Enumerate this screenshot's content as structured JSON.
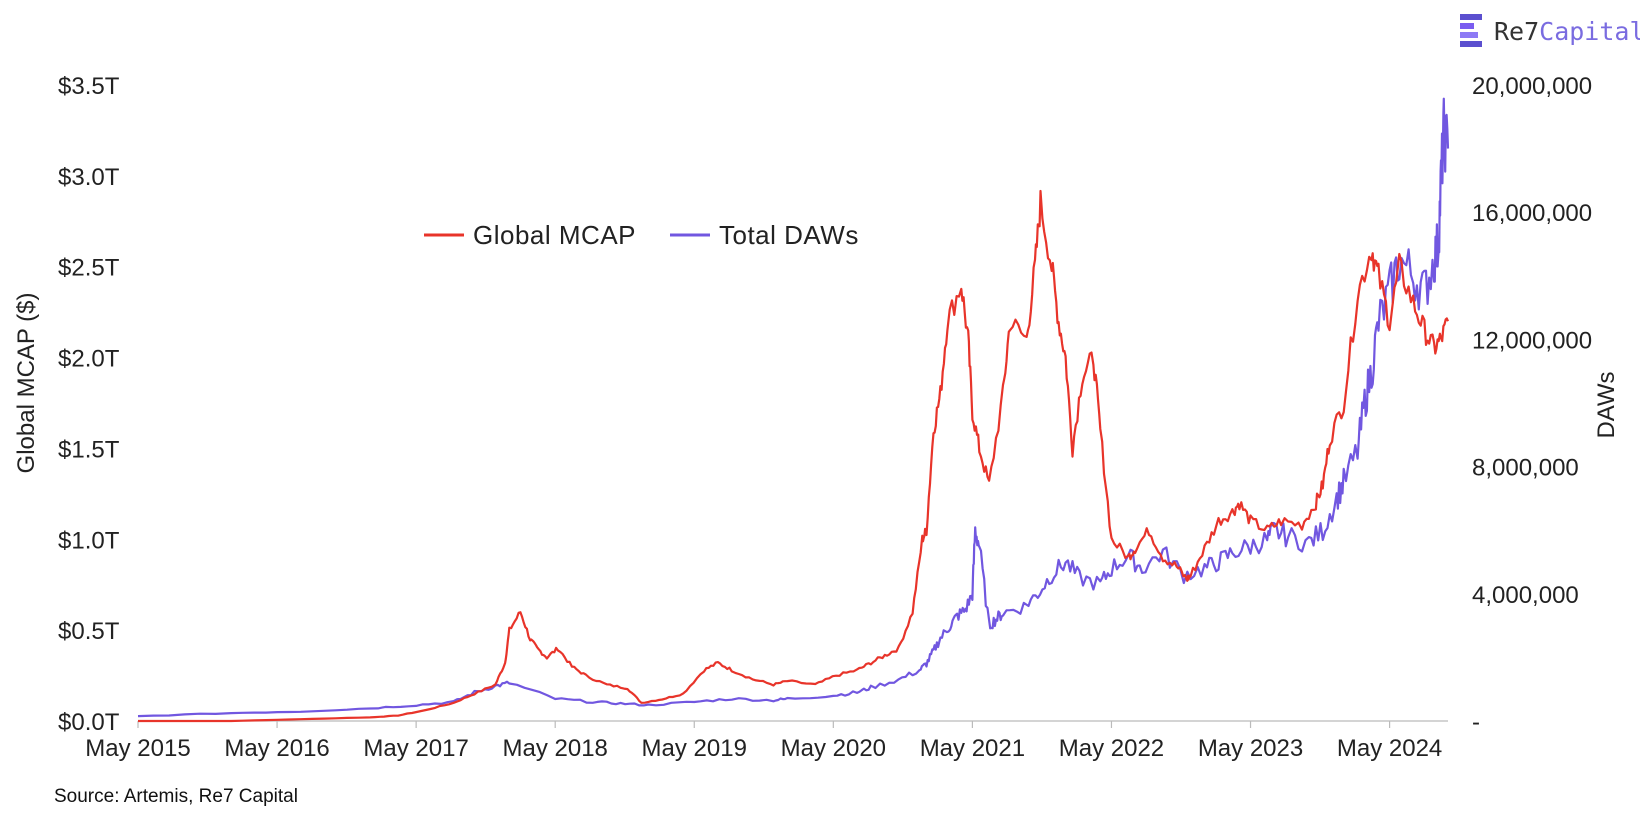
{
  "colors": {
    "mcap": "#e8342a",
    "daws": "#7157e0",
    "axis": "#bbbbbb",
    "text": "#222222"
  },
  "brand": {
    "name_part1": "Re7",
    "name_part2": "Capital",
    "icon": "stacked-bars-logo-icon"
  },
  "source": "Source: Artemis, Re7 Capital",
  "chart_data": {
    "type": "line",
    "title": "",
    "xlabel": "",
    "y_left_label": "Global MCAP ($)",
    "y_right_label": "DAWs",
    "x_range": [
      2015.33,
      2024.75
    ],
    "x_ticks": [
      {
        "v": 2015.33,
        "label": "May 2015"
      },
      {
        "v": 2016.33,
        "label": "May 2016"
      },
      {
        "v": 2017.33,
        "label": "May 2017"
      },
      {
        "v": 2018.33,
        "label": "May 2018"
      },
      {
        "v": 2019.33,
        "label": "May 2019"
      },
      {
        "v": 2020.33,
        "label": "May 2020"
      },
      {
        "v": 2021.33,
        "label": "May 2021"
      },
      {
        "v": 2022.33,
        "label": "May 2022"
      },
      {
        "v": 2023.33,
        "label": "May 2023"
      },
      {
        "v": 2024.33,
        "label": "May 2024"
      }
    ],
    "y_left_range": [
      0,
      3.5
    ],
    "y_left_ticks": [
      {
        "v": 0,
        "label": "$0.0T"
      },
      {
        "v": 0.5,
        "label": "$0.5T"
      },
      {
        "v": 1.0,
        "label": "$1.0T"
      },
      {
        "v": 1.5,
        "label": "$1.5T"
      },
      {
        "v": 2.0,
        "label": "$2.0T"
      },
      {
        "v": 2.5,
        "label": "$2.5T"
      },
      {
        "v": 3.0,
        "label": "$3.0T"
      },
      {
        "v": 3.5,
        "label": "$3.5T"
      }
    ],
    "y_right_range": [
      0,
      20000000
    ],
    "y_right_ticks": [
      {
        "v": 0,
        "label": "-"
      },
      {
        "v": 4000000,
        "label": "4,000,000"
      },
      {
        "v": 8000000,
        "label": "8,000,000"
      },
      {
        "v": 12000000,
        "label": "12,000,000"
      },
      {
        "v": 16000000,
        "label": "16,000,000"
      },
      {
        "v": 20000000,
        "label": "20,000,000"
      }
    ],
    "legend": {
      "position": "top-center"
    },
    "series": [
      {
        "name": "Global MCAP",
        "axis": "left",
        "unit": "trillion USD",
        "x": [
          2015.33,
          2016.0,
          2016.5,
          2017.0,
          2017.2,
          2017.4,
          2017.6,
          2017.75,
          2017.9,
          2017.97,
          2018.0,
          2018.08,
          2018.15,
          2018.2,
          2018.27,
          2018.35,
          2018.45,
          2018.55,
          2018.7,
          2018.85,
          2018.95,
          2019.1,
          2019.25,
          2019.4,
          2019.5,
          2019.6,
          2019.75,
          2019.9,
          2020.0,
          2020.2,
          2020.35,
          2020.5,
          2020.6,
          2020.7,
          2020.8,
          2020.9,
          2020.97,
          2021.0,
          2021.05,
          2021.1,
          2021.15,
          2021.25,
          2021.3,
          2021.33,
          2021.38,
          2021.45,
          2021.55,
          2021.6,
          2021.72,
          2021.78,
          2021.82,
          2021.9,
          2021.95,
          2022.0,
          2022.05,
          2022.12,
          2022.2,
          2022.25,
          2022.33,
          2022.45,
          2022.5,
          2022.6,
          2022.7,
          2022.8,
          2022.87,
          2022.9,
          2023.0,
          2023.1,
          2023.2,
          2023.25,
          2023.33,
          2023.45,
          2023.55,
          2023.7,
          2023.8,
          2023.85,
          2023.9,
          2024.0,
          2024.1,
          2024.2,
          2024.25,
          2024.33,
          2024.4,
          2024.5,
          2024.58,
          2024.65,
          2024.7,
          2024.75
        ],
        "values": [
          0.0,
          0.0,
          0.01,
          0.02,
          0.03,
          0.06,
          0.1,
          0.15,
          0.2,
          0.32,
          0.5,
          0.6,
          0.45,
          0.4,
          0.35,
          0.4,
          0.3,
          0.25,
          0.2,
          0.18,
          0.1,
          0.12,
          0.15,
          0.28,
          0.32,
          0.28,
          0.23,
          0.2,
          0.22,
          0.2,
          0.25,
          0.28,
          0.32,
          0.36,
          0.4,
          0.6,
          1.0,
          1.05,
          1.6,
          1.8,
          2.2,
          2.4,
          2.1,
          1.7,
          1.5,
          1.3,
          1.8,
          2.2,
          2.1,
          2.5,
          2.85,
          2.5,
          2.2,
          2.0,
          1.5,
          1.9,
          2.0,
          1.6,
          1.0,
          0.9,
          0.95,
          1.05,
          0.9,
          0.85,
          0.78,
          0.8,
          0.95,
          1.1,
          1.15,
          1.2,
          1.1,
          1.05,
          1.1,
          1.08,
          1.2,
          1.3,
          1.55,
          1.75,
          2.35,
          2.6,
          2.45,
          2.2,
          2.5,
          2.3,
          2.15,
          2.05,
          2.1,
          2.2
        ]
      },
      {
        "name": "Total DAWs",
        "axis": "right",
        "unit": "addresses",
        "x": [
          2015.33,
          2016.0,
          2016.5,
          2017.0,
          2017.33,
          2017.6,
          2017.75,
          2017.9,
          2018.0,
          2018.33,
          2018.6,
          2018.8,
          2019.0,
          2019.33,
          2019.6,
          2019.9,
          2020.0,
          2020.33,
          2020.5,
          2020.6,
          2020.8,
          2020.95,
          2021.0,
          2021.05,
          2021.1,
          2021.17,
          2021.22,
          2021.28,
          2021.33,
          2021.35,
          2021.38,
          2021.45,
          2021.5,
          2021.55,
          2021.7,
          2021.8,
          2021.9,
          2022.0,
          2022.1,
          2022.25,
          2022.33,
          2022.45,
          2022.55,
          2022.7,
          2022.85,
          2023.0,
          2023.1,
          2023.2,
          2023.33,
          2023.45,
          2023.5,
          2023.6,
          2023.75,
          2023.85,
          2023.95,
          2024.0,
          2024.1,
          2024.15,
          2024.2,
          2024.25,
          2024.33,
          2024.4,
          2024.5,
          2024.58,
          2024.65,
          2024.68,
          2024.7,
          2024.72,
          2024.75
        ],
        "values": [
          150000,
          250000,
          300000,
          400000,
          500000,
          600000,
          900000,
          1100000,
          1200000,
          700000,
          600000,
          550000,
          500000,
          600000,
          700000,
          650000,
          700000,
          800000,
          900000,
          1050000,
          1300000,
          1600000,
          1800000,
          2200000,
          2600000,
          3000000,
          3300000,
          3500000,
          4000000,
          6000000,
          5500000,
          3000000,
          3200000,
          3400000,
          3600000,
          4000000,
          4600000,
          5000000,
          4500000,
          4300000,
          4800000,
          5200000,
          4800000,
          5300000,
          4600000,
          4800000,
          5000000,
          5300000,
          5500000,
          5700000,
          6000000,
          5800000,
          5600000,
          6000000,
          7000000,
          7500000,
          8500000,
          10000000,
          11000000,
          12500000,
          13500000,
          14500000,
          14000000,
          13500000,
          14500000,
          15000000,
          17000000,
          18500000,
          18000000
        ]
      }
    ]
  }
}
